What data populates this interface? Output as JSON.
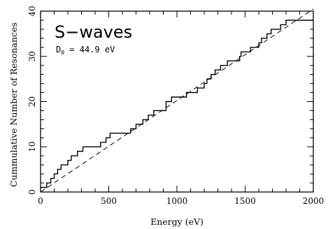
{
  "chart_data": {
    "type": "line",
    "title": "S−waves",
    "annotation_main": "D",
    "annotation_sub": "0",
    "annotation_rest": " = 44.9 eV",
    "xlabel": "Energy (eV)",
    "ylabel": "Cummulative Number of Resonances",
    "xlim": [
      0,
      2000
    ],
    "ylim": [
      0,
      40
    ],
    "x_ticks": [
      0,
      500,
      1000,
      1500,
      2000
    ],
    "y_ticks": [
      0,
      10,
      20,
      30,
      40
    ],
    "grid": false,
    "series": [
      {
        "style": "step",
        "color": "#000000",
        "x": [
          0,
          45,
          75,
          100,
          125,
          150,
          175,
          200,
          225,
          270,
          290,
          310,
          340,
          440,
          480,
          500,
          510,
          600,
          630,
          660,
          700,
          750,
          790,
          830,
          870,
          920,
          950,
          960,
          990,
          1050,
          1070,
          1150,
          1190,
          1200,
          1220,
          1250,
          1280,
          1320,
          1370,
          1450,
          1460,
          1470,
          1520,
          1540,
          1600,
          1620,
          1660,
          1690,
          1720,
          1760,
          1800,
          1840,
          1870,
          2000
        ],
        "y": [
          1,
          2,
          3,
          4,
          5,
          6,
          6,
          7,
          8,
          9,
          9,
          10,
          10,
          11,
          12,
          12,
          13,
          13,
          13,
          14,
          15,
          16,
          17,
          18,
          18,
          20,
          20,
          21,
          21,
          21,
          22,
          23,
          23,
          24,
          25,
          26,
          27,
          28,
          29,
          29,
          30,
          31,
          31,
          32,
          33,
          34,
          35,
          36,
          36,
          37,
          38,
          38,
          38,
          38
        ]
      },
      {
        "style": "dashed",
        "color": "#000000",
        "x": [
          0,
          2000
        ],
        "y": [
          0,
          40.5
        ]
      }
    ]
  }
}
